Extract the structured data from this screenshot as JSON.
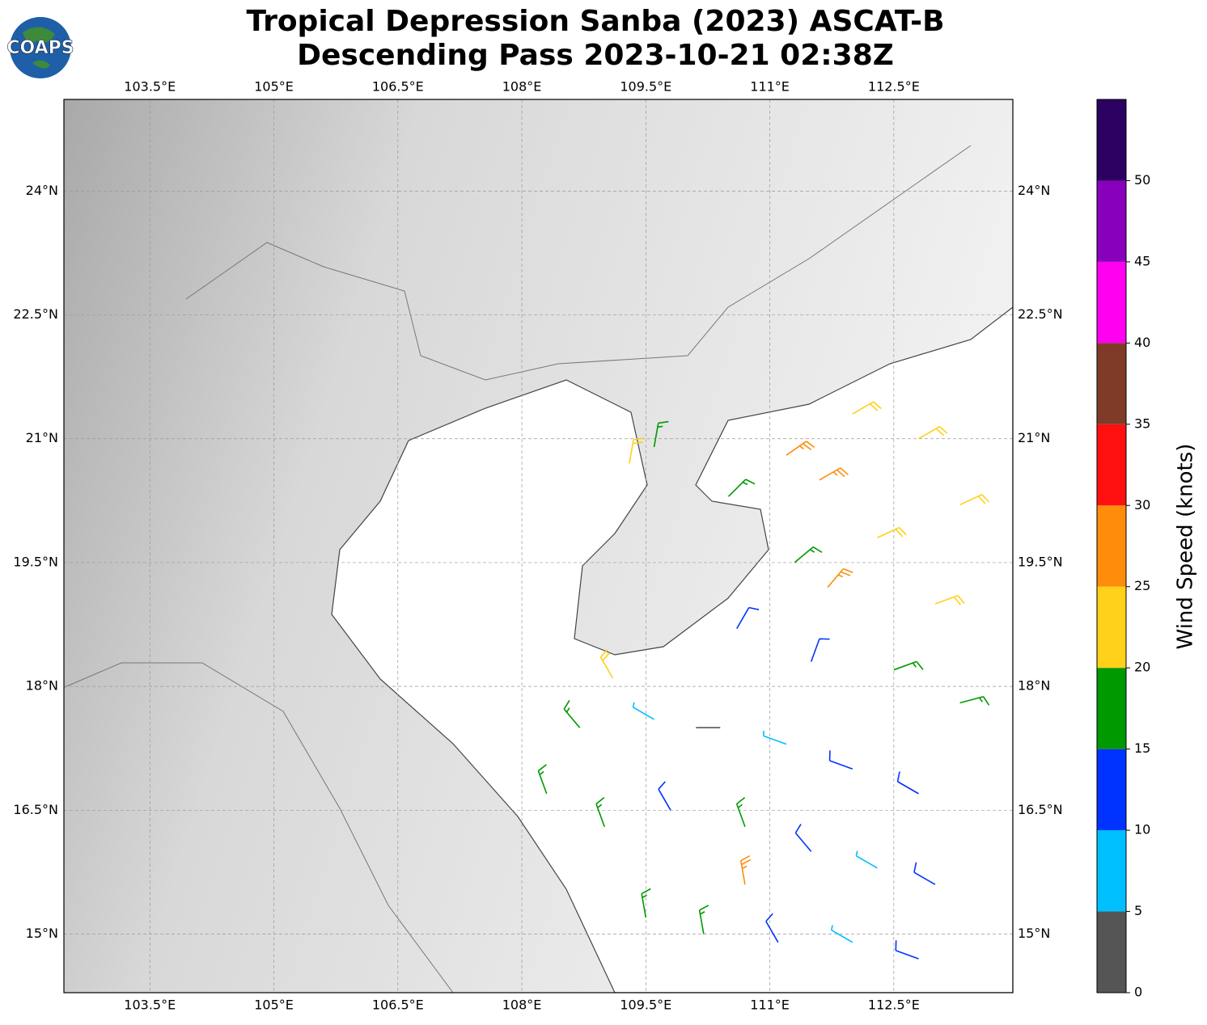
{
  "logo": "COAPS",
  "title": [
    "Tropical Depression Sanba (2023) ASCAT-B",
    "Descending Pass 2023-10-21 02:38Z"
  ],
  "map": {
    "xlim": [
      102.46,
      113.94
    ],
    "ylim": [
      14.29,
      25.11
    ],
    "grid": true,
    "xticks": [
      {
        "value": 103.5,
        "label": "103.5°E"
      },
      {
        "value": 105,
        "label": "105°E"
      },
      {
        "value": 106.5,
        "label": "106.5°E"
      },
      {
        "value": 108,
        "label": "108°E"
      },
      {
        "value": 109.5,
        "label": "109.5°E"
      },
      {
        "value": 111,
        "label": "111°E"
      },
      {
        "value": 112.5,
        "label": "112.5°E"
      }
    ],
    "yticks": [
      {
        "value": 24,
        "label": "24°N"
      },
      {
        "value": 22.5,
        "label": "22.5°N"
      },
      {
        "value": 21,
        "label": "21°N"
      },
      {
        "value": 19.5,
        "label": "19.5°N"
      },
      {
        "value": 18,
        "label": "18°N"
      },
      {
        "value": 16.5,
        "label": "16.5°N"
      },
      {
        "value": 15,
        "label": "15°N"
      }
    ]
  },
  "barbs": {
    "lon": [
      112.0,
      112.8,
      111.2,
      111.6,
      110.5,
      109.3,
      109.6,
      113.3,
      112.3,
      111.3,
      113.0,
      111.7,
      110.6,
      111.5,
      112.5,
      113.3,
      109.1,
      108.7,
      109.6,
      110.4,
      111.2,
      112.0,
      112.8,
      108.3,
      109.0,
      109.8,
      110.7,
      111.5,
      112.3,
      113.0,
      109.5,
      110.2,
      111.1,
      112.0,
      112.8,
      110.7
    ],
    "lat": [
      21.3,
      21.0,
      20.8,
      20.5,
      20.3,
      20.7,
      20.9,
      20.2,
      19.8,
      19.5,
      19.0,
      19.2,
      18.7,
      18.3,
      18.2,
      17.8,
      18.1,
      17.5,
      17.6,
      17.5,
      17.3,
      17.0,
      16.7,
      16.7,
      16.3,
      16.5,
      16.3,
      16.0,
      15.8,
      15.6,
      15.2,
      15.0,
      14.9,
      14.9,
      14.7,
      15.6
    ],
    "speed": [
      22,
      22,
      27,
      27,
      17,
      22,
      17,
      22,
      22,
      17,
      22,
      27,
      12,
      12,
      17,
      17,
      22,
      17,
      7,
      3,
      7,
      12,
      12,
      17,
      17,
      12,
      17,
      12,
      7,
      12,
      17,
      17,
      12,
      7,
      12,
      27
    ],
    "direction": [
      60,
      60,
      55,
      60,
      45,
      10,
      10,
      65,
      65,
      50,
      70,
      40,
      30,
      20,
      70,
      75,
      330,
      320,
      300,
      270,
      290,
      290,
      300,
      340,
      340,
      330,
      340,
      320,
      300,
      300,
      350,
      350,
      330,
      300,
      290,
      350
    ]
  },
  "colorbar": {
    "label": "Wind Speed (knots)",
    "lim": [
      0,
      55
    ],
    "bounds": [
      0,
      5,
      10,
      15,
      20,
      25,
      30,
      35,
      40,
      45,
      50,
      55
    ],
    "colors": [
      "#555555",
      "#00bfff",
      "#0033ff",
      "#009900",
      "#ffd11a",
      "#ff8c0a",
      "#ff1010",
      "#803a28",
      "#ff00f0",
      "#8800bb",
      "#2a0060"
    ],
    "ticks": [
      0,
      5,
      10,
      15,
      20,
      25,
      30,
      35,
      40,
      45,
      50
    ]
  }
}
